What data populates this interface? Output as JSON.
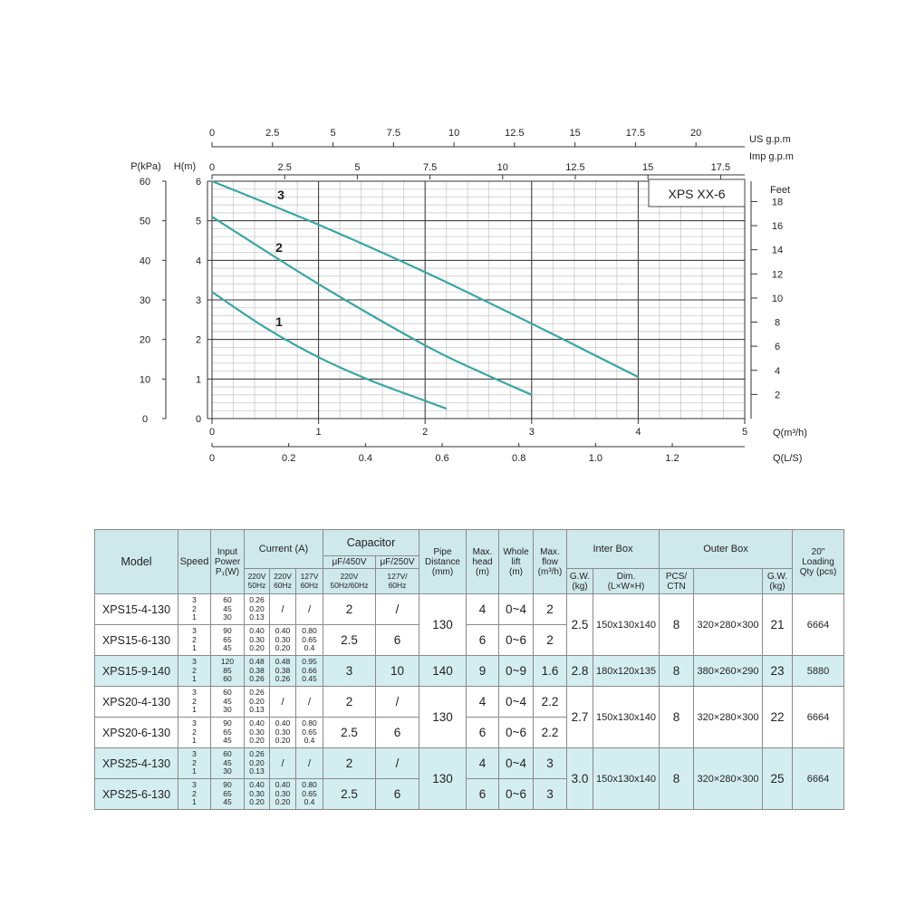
{
  "chart_data": {
    "type": "line",
    "title": "XPS  XX-6",
    "x_primary": {
      "label": "Q(m³/h)",
      "range": [
        0,
        5
      ],
      "ticks": [
        "0",
        "1",
        "2",
        "3",
        "4",
        "5"
      ]
    },
    "x_ls": {
      "label": "Q(L/S)",
      "ticks": [
        "0",
        "0.2",
        "0.4",
        "0.6",
        "0.8",
        "1.0",
        "1.2"
      ],
      "values": [
        0,
        0.2,
        0.4,
        0.6,
        0.8,
        1.0,
        1.2
      ]
    },
    "x_us": {
      "label": "US  g.p.m",
      "ticks": [
        "0",
        "2.5",
        "5",
        "7.5",
        "10",
        "12.5",
        "15",
        "17.5",
        "20"
      ],
      "values": [
        0,
        2.5,
        5,
        7.5,
        10,
        12.5,
        15,
        17.5,
        20
      ]
    },
    "x_imp": {
      "label": "Imp  g.p.m",
      "ticks": [
        "0",
        "2.5",
        "5",
        "7.5",
        "10",
        "12.5",
        "15",
        "17.5"
      ],
      "values": [
        0,
        2.5,
        5,
        7.5,
        10,
        12.5,
        15,
        17.5
      ]
    },
    "y_head": {
      "label": "H(m)",
      "range": [
        0,
        6
      ],
      "ticks": [
        "0",
        "1",
        "2",
        "3",
        "4",
        "5",
        "6"
      ]
    },
    "y_kpa": {
      "label": "P(kPa)",
      "ticks": [
        "0",
        "10",
        "20",
        "30",
        "40",
        "50",
        "60"
      ],
      "values": [
        0,
        10,
        20,
        30,
        40,
        50,
        60
      ]
    },
    "y_feet": {
      "label": "Feet",
      "ticks": [
        "2",
        "4",
        "6",
        "8",
        "10",
        "12",
        "14",
        "16",
        "18"
      ],
      "values": [
        2,
        4,
        6,
        8,
        10,
        12,
        14,
        16,
        18
      ]
    },
    "series": [
      {
        "name": "1",
        "x": [
          0,
          0.5,
          1.0,
          1.5,
          2.0,
          2.2
        ],
        "y": [
          3.2,
          2.3,
          1.55,
          0.95,
          0.45,
          0.25
        ]
      },
      {
        "name": "2",
        "x": [
          0,
          1.0,
          2.0,
          2.5,
          3.0
        ],
        "y": [
          5.1,
          3.4,
          1.85,
          1.2,
          0.6
        ]
      },
      {
        "name": "3",
        "x": [
          0,
          1.0,
          2.0,
          3.0,
          4.0
        ],
        "y": [
          6.0,
          4.9,
          3.7,
          2.4,
          1.05
        ]
      }
    ],
    "grid": true,
    "colors": {
      "curve": "#3aa5a5",
      "grid": "#c9c9c9",
      "major_grid": "#333333"
    }
  },
  "table": {
    "headers": {
      "model": "Model",
      "speed": "Speed",
      "input_power": [
        "Input",
        "Power",
        "P₁(W)"
      ],
      "current": "Current  (A)",
      "current_sub": [
        [
          "220V",
          "50Hz"
        ],
        [
          "220V",
          "60Hz"
        ],
        [
          "127V",
          "60Hz"
        ]
      ],
      "capacitor": "Capacitor",
      "capacitor_sub": [
        "μF/450V",
        "μF/250V"
      ],
      "capacitor_sub2": [
        [
          "220V",
          "50Hz/60Hz"
        ],
        [
          "127V/",
          "60Hz"
        ]
      ],
      "pipe": [
        "Pipe",
        "Distance",
        "(mm)"
      ],
      "max_head": [
        "Max.",
        "head",
        "(m)"
      ],
      "whole_lift": [
        "Whole",
        "lift",
        "(m)"
      ],
      "max_flow": [
        "Max.",
        "flow",
        "(m³/h)"
      ],
      "inter_box": "Inter Box",
      "inter_sub": [
        [
          "G.W.",
          "(kg)"
        ],
        [
          "Dim.",
          "(L×W×H)"
        ]
      ],
      "outer_box": "Outer Box",
      "outer_sub": [
        [
          "PCS/",
          "CTN"
        ],
        [
          "",
          ""
        ],
        [
          "G.W.",
          "(kg)"
        ]
      ],
      "loading": [
        "20\"",
        "Loading",
        "Qty (pcs)"
      ]
    },
    "rows": [
      {
        "model": "XPS15-4-130",
        "speed": [
          "3",
          "2",
          "1"
        ],
        "power": [
          "60",
          "45",
          "30"
        ],
        "c220_50": [
          "0.26",
          "0.20",
          "0.13"
        ],
        "c220_60": "/",
        "c127_60": "/",
        "cap450": "2",
        "cap250": "/",
        "head": "4",
        "lift": "0~4",
        "flow": "2"
      },
      {
        "model": "XPS15-6-130",
        "speed": [
          "3",
          "2",
          "1"
        ],
        "power": [
          "90",
          "65",
          "45"
        ],
        "c220_50": [
          "0.40",
          "0.30",
          "0.20"
        ],
        "c220_60": [
          "0.40",
          "0.30",
          "0.20"
        ],
        "c127_60": [
          "0.80",
          "0.65",
          "0.4"
        ],
        "cap450": "2.5",
        "cap250": "6",
        "head": "6",
        "lift": "0~6",
        "flow": "2"
      },
      {
        "model": "XPS15-9-140",
        "speed": [
          "3",
          "2",
          "1"
        ],
        "power": [
          "120",
          "85",
          "60"
        ],
        "c220_50": [
          "0.48",
          "0.38",
          "0.26"
        ],
        "c220_60": [
          "0.48",
          "0.38",
          "0.26"
        ],
        "c127_60": [
          "0.95",
          "0.66",
          "0.45"
        ],
        "cap450": "3",
        "cap250": "10",
        "head": "9",
        "lift": "0~9",
        "flow": "1.6"
      },
      {
        "model": "XPS20-4-130",
        "speed": [
          "3",
          "2",
          "1"
        ],
        "power": [
          "60",
          "45",
          "30"
        ],
        "c220_50": [
          "0.26",
          "0.20",
          "0.13"
        ],
        "c220_60": "/",
        "c127_60": "/",
        "cap450": "2",
        "cap250": "/",
        "head": "4",
        "lift": "0~4",
        "flow": "2.2"
      },
      {
        "model": "XPS20-6-130",
        "speed": [
          "3",
          "2",
          "1"
        ],
        "power": [
          "90",
          "65",
          "45"
        ],
        "c220_50": [
          "0.40",
          "0.30",
          "0.20"
        ],
        "c220_60": [
          "0.40",
          "0.30",
          "0.20"
        ],
        "c127_60": [
          "0.80",
          "0.65",
          "0.4"
        ],
        "cap450": "2.5",
        "cap250": "6",
        "head": "6",
        "lift": "0~6",
        "flow": "2.2"
      },
      {
        "model": "XPS25-4-130",
        "speed": [
          "3",
          "2",
          "1"
        ],
        "power": [
          "60",
          "45",
          "30"
        ],
        "c220_50": [
          "0.26",
          "0.20",
          "0.13"
        ],
        "c220_60": "/",
        "c127_60": "/",
        "cap450": "2",
        "cap250": "/",
        "head": "4",
        "lift": "0~4",
        "flow": "3"
      },
      {
        "model": "XPS25-6-130",
        "speed": [
          "3",
          "2",
          "1"
        ],
        "power": [
          "90",
          "65",
          "45"
        ],
        "c220_50": [
          "0.40",
          "0.30",
          "0.20"
        ],
        "c220_60": [
          "0.40",
          "0.30",
          "0.20"
        ],
        "c127_60": [
          "0.80",
          "0.65",
          "0.4"
        ],
        "cap450": "2.5",
        "cap250": "6",
        "head": "6",
        "lift": "0~6",
        "flow": "3"
      }
    ],
    "groups": [
      {
        "pipe": "130",
        "inter_gw": "2.5",
        "inter_dim": "150x130x140",
        "pcs": "8",
        "outer_dim": "320×280×300",
        "outer_gw": "21",
        "loading": "6664"
      },
      {
        "pipe": "140",
        "inter_gw": "2.8",
        "inter_dim": "180x120x135",
        "pcs": "8",
        "outer_dim": "380×260×290",
        "outer_gw": "23",
        "loading": "5880"
      },
      {
        "pipe": "130",
        "inter_gw": "2.7",
        "inter_dim": "150x130x140",
        "pcs": "8",
        "outer_dim": "320×280×300",
        "outer_gw": "22",
        "loading": "6664"
      },
      {
        "pipe": "130",
        "inter_gw": "3.0",
        "inter_dim": "150x130x140",
        "pcs": "8",
        "outer_dim": "320×280×300",
        "outer_gw": "25",
        "loading": "6664"
      }
    ]
  }
}
